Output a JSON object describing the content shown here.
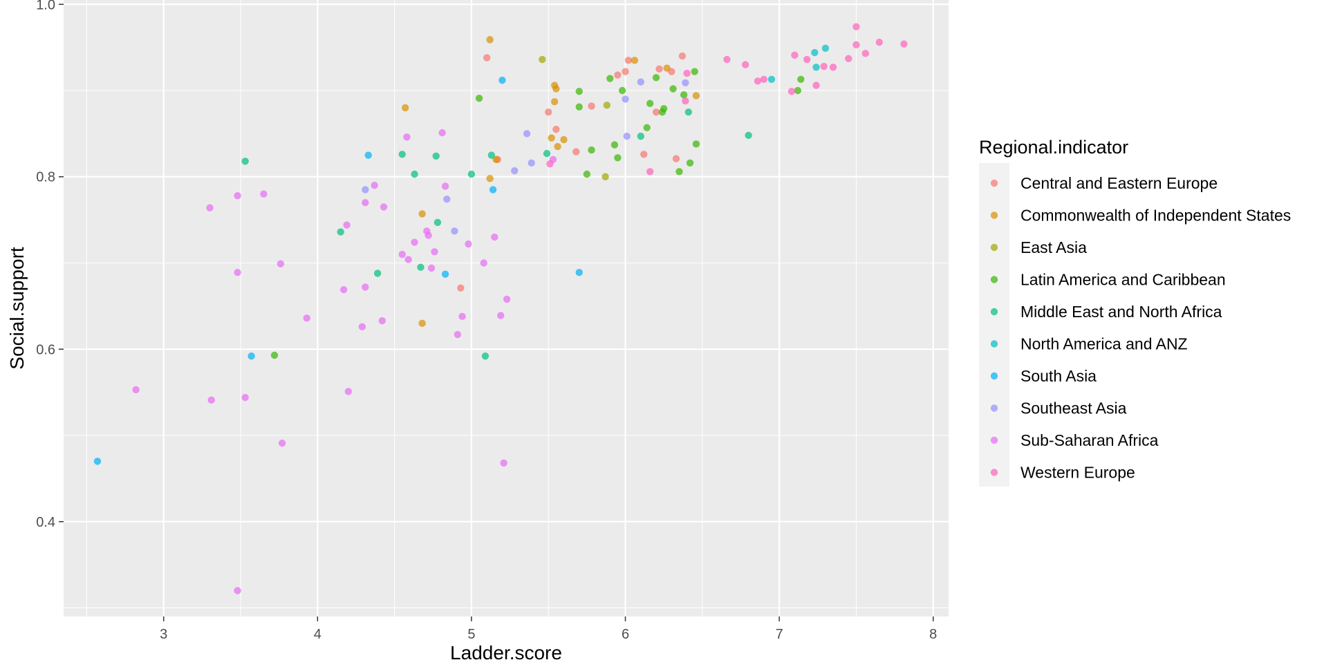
{
  "chart_data": {
    "type": "scatter",
    "xlabel": "Ladder.score",
    "ylabel": "Social.support",
    "xlim": [
      2.35,
      8.1
    ],
    "ylim": [
      0.29,
      1.005
    ],
    "x_ticks": [
      3,
      4,
      5,
      6,
      7,
      8
    ],
    "y_ticks": [
      0.4,
      0.6,
      0.8,
      1.0
    ],
    "x_tick_labels": [
      "3",
      "4",
      "5",
      "6",
      "7",
      "8"
    ],
    "y_tick_labels": [
      "0.4",
      "0.6",
      "0.8",
      "1.0"
    ],
    "grid": true,
    "legend": {
      "title": "Regional.indicator",
      "position": "right"
    },
    "point_opacity": 0.7,
    "series": [
      {
        "name": "Central and Eastern Europe",
        "color": "#F8766D",
        "points": [
          [
            5.1,
            0.938
          ],
          [
            5.5,
            0.875
          ],
          [
            5.55,
            0.855
          ],
          [
            5.68,
            0.829
          ],
          [
            5.78,
            0.882
          ],
          [
            5.95,
            0.918
          ],
          [
            6.0,
            0.922
          ],
          [
            6.02,
            0.935
          ],
          [
            6.12,
            0.826
          ],
          [
            6.2,
            0.875
          ],
          [
            6.22,
            0.925
          ],
          [
            6.3,
            0.922
          ],
          [
            6.33,
            0.821
          ],
          [
            6.37,
            0.94
          ],
          [
            4.93,
            0.671
          ],
          [
            5.17,
            0.82
          ]
        ]
      },
      {
        "name": "Commonwealth of Independent States",
        "color": "#D89000",
        "points": [
          [
            5.12,
            0.959
          ],
          [
            4.57,
            0.88
          ],
          [
            5.54,
            0.906
          ],
          [
            5.55,
            0.902
          ],
          [
            5.54,
            0.887
          ],
          [
            5.52,
            0.845
          ],
          [
            5.6,
            0.843
          ],
          [
            5.56,
            0.835
          ],
          [
            5.12,
            0.798
          ],
          [
            5.16,
            0.82
          ],
          [
            4.68,
            0.757
          ],
          [
            4.68,
            0.63
          ],
          [
            6.06,
            0.935
          ],
          [
            6.27,
            0.926
          ],
          [
            6.46,
            0.894
          ]
        ]
      },
      {
        "name": "East Asia",
        "color": "#A3A500",
        "points": [
          [
            5.46,
            0.936
          ],
          [
            5.88,
            0.883
          ],
          [
            5.87,
            0.8
          ]
        ]
      },
      {
        "name": "Latin America and Caribbean",
        "color": "#39B600",
        "points": [
          [
            5.05,
            0.891
          ],
          [
            5.7,
            0.899
          ],
          [
            5.7,
            0.881
          ],
          [
            5.9,
            0.914
          ],
          [
            5.98,
            0.9
          ],
          [
            6.16,
            0.885
          ],
          [
            6.2,
            0.915
          ],
          [
            6.24,
            0.875
          ],
          [
            6.25,
            0.879
          ],
          [
            6.31,
            0.902
          ],
          [
            6.38,
            0.895
          ],
          [
            6.45,
            0.922
          ],
          [
            6.14,
            0.857
          ],
          [
            5.93,
            0.837
          ],
          [
            5.78,
            0.831
          ],
          [
            5.75,
            0.803
          ],
          [
            5.95,
            0.822
          ],
          [
            6.35,
            0.806
          ],
          [
            6.42,
            0.816
          ],
          [
            6.46,
            0.838
          ],
          [
            3.72,
            0.593
          ],
          [
            7.12,
            0.9
          ],
          [
            7.14,
            0.913
          ]
        ]
      },
      {
        "name": "Middle East and North Africa",
        "color": "#00BF7D",
        "points": [
          [
            3.53,
            0.818
          ],
          [
            4.15,
            0.736
          ],
          [
            4.39,
            0.688
          ],
          [
            4.55,
            0.826
          ],
          [
            4.63,
            0.803
          ],
          [
            4.67,
            0.695
          ],
          [
            4.77,
            0.824
          ],
          [
            4.78,
            0.747
          ],
          [
            5.0,
            0.803
          ],
          [
            5.09,
            0.592
          ],
          [
            5.13,
            0.825
          ],
          [
            5.49,
            0.827
          ],
          [
            6.41,
            0.875
          ],
          [
            6.8,
            0.848
          ],
          [
            6.1,
            0.847
          ]
        ]
      },
      {
        "name": "North America and ANZ",
        "color": "#00BFC4",
        "points": [
          [
            6.95,
            0.913
          ],
          [
            7.23,
            0.944
          ],
          [
            7.3,
            0.949
          ],
          [
            7.24,
            0.927
          ]
        ]
      },
      {
        "name": "South Asia",
        "color": "#00B0F6",
        "points": [
          [
            2.57,
            0.47
          ],
          [
            3.57,
            0.592
          ],
          [
            4.33,
            0.825
          ],
          [
            4.83,
            0.687
          ],
          [
            5.14,
            0.785
          ],
          [
            5.2,
            0.912
          ],
          [
            5.7,
            0.689
          ]
        ]
      },
      {
        "name": "Southeast Asia",
        "color": "#9590FF",
        "points": [
          [
            4.31,
            0.785
          ],
          [
            4.84,
            0.774
          ],
          [
            4.89,
            0.737
          ],
          [
            5.28,
            0.807
          ],
          [
            5.36,
            0.85
          ],
          [
            5.39,
            0.816
          ],
          [
            6.0,
            0.89
          ],
          [
            6.01,
            0.847
          ],
          [
            6.1,
            0.91
          ],
          [
            6.39,
            0.909
          ]
        ]
      },
      {
        "name": "Sub-Saharan Africa",
        "color": "#E76BF3",
        "points": [
          [
            2.82,
            0.553
          ],
          [
            3.3,
            0.764
          ],
          [
            3.31,
            0.541
          ],
          [
            3.48,
            0.778
          ],
          [
            3.48,
            0.689
          ],
          [
            3.48,
            0.32
          ],
          [
            3.53,
            0.544
          ],
          [
            3.65,
            0.78
          ],
          [
            3.76,
            0.699
          ],
          [
            3.77,
            0.491
          ],
          [
            3.93,
            0.636
          ],
          [
            4.17,
            0.669
          ],
          [
            4.19,
            0.744
          ],
          [
            4.2,
            0.551
          ],
          [
            4.29,
            0.626
          ],
          [
            4.31,
            0.77
          ],
          [
            4.31,
            0.672
          ],
          [
            4.37,
            0.79
          ],
          [
            4.42,
            0.633
          ],
          [
            4.43,
            0.765
          ],
          [
            4.55,
            0.71
          ],
          [
            4.58,
            0.846
          ],
          [
            4.59,
            0.704
          ],
          [
            4.63,
            0.724
          ],
          [
            4.71,
            0.737
          ],
          [
            4.72,
            0.732
          ],
          [
            4.74,
            0.694
          ],
          [
            4.76,
            0.713
          ],
          [
            4.81,
            0.851
          ],
          [
            4.83,
            0.789
          ],
          [
            4.91,
            0.617
          ],
          [
            4.94,
            0.638
          ],
          [
            4.98,
            0.722
          ],
          [
            5.08,
            0.7
          ],
          [
            5.15,
            0.73
          ],
          [
            5.19,
            0.639
          ],
          [
            5.21,
            0.468
          ],
          [
            5.23,
            0.658
          ],
          [
            5.53,
            0.82
          ]
        ]
      },
      {
        "name": "Western Europe",
        "color": "#FF62BC",
        "points": [
          [
            5.51,
            0.815
          ],
          [
            6.16,
            0.806
          ],
          [
            6.4,
            0.92
          ],
          [
            6.66,
            0.936
          ],
          [
            6.78,
            0.93
          ],
          [
            6.86,
            0.911
          ],
          [
            6.9,
            0.913
          ],
          [
            7.08,
            0.899
          ],
          [
            7.1,
            0.941
          ],
          [
            7.18,
            0.936
          ],
          [
            7.24,
            0.906
          ],
          [
            7.29,
            0.928
          ],
          [
            7.35,
            0.927
          ],
          [
            7.45,
            0.937
          ],
          [
            7.5,
            0.953
          ],
          [
            7.5,
            0.974
          ],
          [
            7.56,
            0.943
          ],
          [
            7.65,
            0.956
          ],
          [
            7.81,
            0.954
          ],
          [
            6.39,
            0.888
          ]
        ]
      }
    ]
  }
}
